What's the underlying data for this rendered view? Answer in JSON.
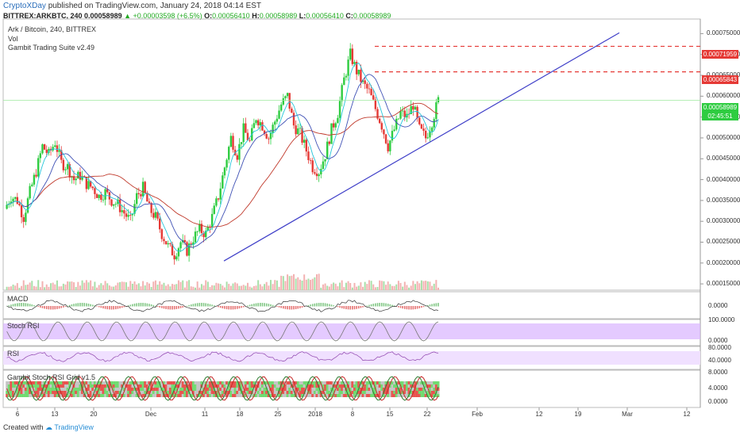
{
  "header": {
    "brand": "CryptoXDay",
    "published": "published on TradingView.com, January 24, 2018 04:14 EST",
    "symbol": "BITTREX:ARKBTC, 240",
    "last": "0.00058989",
    "change": "+0.00003598 (+6.5%)",
    "open_label": "O:",
    "open": "0.00056410",
    "high_label": "H:",
    "high": "0.00058989",
    "low_label": "L:",
    "low": "0.00056410",
    "close_label": "C:",
    "close": "0.00058989"
  },
  "legend": {
    "title": "Ark / Bitcoin, 240, BITTREX",
    "vol": "Vol",
    "suite": "Gambit Trading Suite v2.49"
  },
  "panels": {
    "macd": "MACD",
    "stoch_rsi": "Stoch RSI",
    "rsi": "RSI",
    "grid": "Gambit Stoch RSI Grid v1.5"
  },
  "price_tags": {
    "upper": "0.00071959",
    "middle": "0.00065843",
    "current": "0.00058989",
    "countdown": "02:45:51"
  },
  "colors": {
    "up": "#26a69a",
    "up_candle": "#2ecc40",
    "down_candle": "#e53935",
    "trendline": "#3f3fc8",
    "resistance": "#e53935",
    "stoch_band": "#d9b3ff",
    "rsi_band": "#f0e0ff"
  },
  "footer": {
    "created": "Created with",
    "tv": "TradingView"
  },
  "chart_data": {
    "type": "candlestick",
    "title": "Ark / Bitcoin, 240, BITTREX",
    "y_ticks": [
      "0.00075000",
      "0.00070000",
      "0.00065000",
      "0.00060000",
      "0.00055000",
      "0.00050000",
      "0.00045000",
      "0.00040000",
      "0.00035000",
      "0.00030000",
      "0.00025000",
      "0.00020000",
      "0.00015000"
    ],
    "ylim": [
      0.000135,
      0.000785
    ],
    "x_ticks": [
      "6",
      "13",
      "20",
      "Dec",
      "11",
      "18",
      "25",
      "2018",
      "8",
      "15",
      "22",
      "Feb",
      "12",
      "19",
      "Mar",
      "12"
    ],
    "resistance_levels": [
      0.00071959,
      0.00065843
    ],
    "current_price": 0.00058989,
    "trendline": [
      [
        0.000205,
        "Dec 14"
      ],
      [
        0.000752,
        "Feb 26"
      ]
    ],
    "indicator_ticks": {
      "macd": [
        "0.0000"
      ],
      "stoch_rsi": [
        "100.0000",
        "0.0000"
      ],
      "rsi": [
        "80.0000",
        "40.0000"
      ],
      "grid": [
        "8.0000",
        "4.0000",
        "0.0000"
      ]
    },
    "price_path": [
      0.00033,
      0.00036,
      0.00035,
      0.00031,
      0.00037,
      0.00042,
      0.00048,
      0.00046,
      0.00049,
      0.00044,
      0.00043,
      0.0004,
      0.00041,
      0.00039,
      0.00038,
      0.00036,
      0.00037,
      0.00035,
      0.00034,
      0.00032,
      0.0003,
      0.00036,
      0.00038,
      0.00033,
      0.00031,
      0.00027,
      0.00024,
      0.00022,
      0.00025,
      0.00023,
      0.00026,
      0.00028,
      0.00027,
      0.00031,
      0.00036,
      0.00043,
      0.0005,
      0.00046,
      0.00052,
      0.00049,
      0.00055,
      0.00053,
      0.0005,
      0.00054,
      0.00058,
      0.0006,
      0.00053,
      0.00051,
      0.00047,
      0.00043,
      0.00042,
      0.00046,
      0.00052,
      0.00056,
      0.00064,
      0.0007,
      0.00066,
      0.00063,
      0.00061,
      0.00057,
      0.00053,
      0.00048,
      0.00052,
      0.00056,
      0.00055,
      0.00058,
      0.00052,
      0.0005,
      0.00054,
      0.00058989
    ]
  }
}
